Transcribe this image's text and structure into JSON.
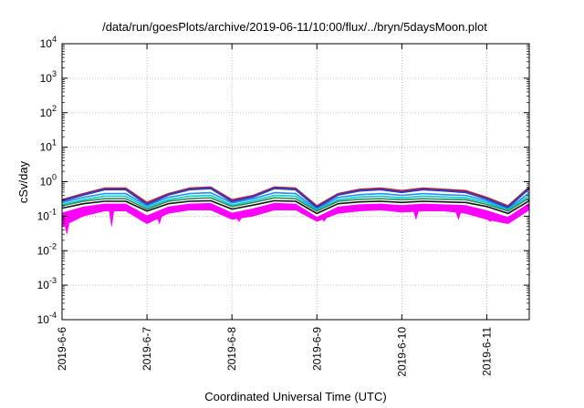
{
  "chart_data": {
    "type": "line",
    "title": "/data/run/goesPlots/archive/2019-06-11/10:00/flux/../bryn/5daysMoon.plot",
    "xlabel": "Coordinated Universal Time (UTC)",
    "ylabel": "cSv/day",
    "y_scale": "log",
    "ylim": [
      0.0001,
      10000
    ],
    "xlim": [
      "2019-6-6",
      "2019-6-11 12:00"
    ],
    "grid": true,
    "x_tick_labels": [
      "2019-6-6",
      "2019-6-7",
      "2019-6-8",
      "2019-6-9",
      "2019-6-10",
      "2019-6-11"
    ],
    "y_ticks": [
      {
        "base": "10",
        "exp": "-4"
      },
      {
        "base": "10",
        "exp": "-3"
      },
      {
        "base": "10",
        "exp": "-2"
      },
      {
        "base": "10",
        "exp": "-1"
      },
      {
        "base": "10",
        "exp": "0"
      },
      {
        "base": "10",
        "exp": "1"
      },
      {
        "base": "10",
        "exp": "2"
      },
      {
        "base": "10",
        "exp": "3"
      },
      {
        "base": "10",
        "exp": "4"
      }
    ],
    "x": [
      "2019-6-6 00:00",
      "2019-6-6 06:00",
      "2019-6-6 12:00",
      "2019-6-6 18:00",
      "2019-6-7 00:00",
      "2019-6-7 06:00",
      "2019-6-7 12:00",
      "2019-6-7 18:00",
      "2019-6-8 00:00",
      "2019-6-8 06:00",
      "2019-6-8 12:00",
      "2019-6-8 18:00",
      "2019-6-9 00:00",
      "2019-6-9 06:00",
      "2019-6-9 12:00",
      "2019-6-9 18:00",
      "2019-6-10 00:00",
      "2019-6-10 06:00",
      "2019-6-10 12:00",
      "2019-6-10 18:00",
      "2019-6-11 00:00",
      "2019-6-11 06:00",
      "2019-6-11 12:00"
    ],
    "series": [
      {
        "color": "#e41a1c",
        "values": [
          0.3,
          0.45,
          0.65,
          0.65,
          0.25,
          0.45,
          0.65,
          0.7,
          0.3,
          0.4,
          0.7,
          0.65,
          0.2,
          0.45,
          0.6,
          0.65,
          0.55,
          0.65,
          0.6,
          0.55,
          0.35,
          0.2,
          0.7
        ]
      },
      {
        "color": "#3a3ab0",
        "values": [
          0.28,
          0.42,
          0.6,
          0.6,
          0.22,
          0.42,
          0.6,
          0.65,
          0.27,
          0.37,
          0.65,
          0.6,
          0.18,
          0.42,
          0.55,
          0.6,
          0.5,
          0.6,
          0.55,
          0.5,
          0.32,
          0.18,
          0.65
        ]
      },
      {
        "color": "#1e90ff",
        "values": [
          0.25,
          0.35,
          0.45,
          0.45,
          0.2,
          0.35,
          0.45,
          0.48,
          0.24,
          0.32,
          0.48,
          0.45,
          0.16,
          0.35,
          0.42,
          0.45,
          0.4,
          0.45,
          0.42,
          0.4,
          0.28,
          0.16,
          0.48
        ]
      },
      {
        "color": "#00ced1",
        "values": [
          0.22,
          0.3,
          0.38,
          0.38,
          0.18,
          0.3,
          0.38,
          0.4,
          0.21,
          0.28,
          0.4,
          0.38,
          0.15,
          0.3,
          0.36,
          0.38,
          0.34,
          0.38,
          0.36,
          0.34,
          0.25,
          0.15,
          0.4
        ]
      },
      {
        "color": "#2e8b57",
        "values": [
          0.2,
          0.27,
          0.32,
          0.32,
          0.16,
          0.27,
          0.32,
          0.34,
          0.19,
          0.25,
          0.34,
          0.32,
          0.14,
          0.27,
          0.31,
          0.32,
          0.3,
          0.32,
          0.31,
          0.3,
          0.22,
          0.14,
          0.34
        ]
      },
      {
        "color": "#111111",
        "values": [
          0.17,
          0.23,
          0.27,
          0.27,
          0.14,
          0.23,
          0.27,
          0.28,
          0.16,
          0.21,
          0.28,
          0.27,
          0.12,
          0.23,
          0.26,
          0.27,
          0.25,
          0.27,
          0.26,
          0.25,
          0.19,
          0.12,
          0.28
        ]
      },
      {
        "color": "#ff00ff",
        "values": [
          0.12,
          0.18,
          0.22,
          0.22,
          0.1,
          0.18,
          0.22,
          0.23,
          0.12,
          0.16,
          0.23,
          0.22,
          0.09,
          0.18,
          0.21,
          0.22,
          0.2,
          0.22,
          0.21,
          0.2,
          0.14,
          0.09,
          0.23
        ]
      }
    ],
    "magenta_band_min": [
      0.05,
      0.1,
      0.14,
      0.14,
      0.06,
      0.12,
      0.15,
      0.15,
      0.08,
      0.1,
      0.15,
      0.15,
      0.07,
      0.12,
      0.14,
      0.15,
      0.13,
      0.14,
      0.14,
      0.12,
      0.08,
      0.06,
      0.15
    ],
    "magenta_dips": [
      {
        "x": "2019-6-6 01:20",
        "y": 0.03
      },
      {
        "x": "2019-6-6 14:00",
        "y": 0.05
      },
      {
        "x": "2019-6-7 03:30",
        "y": 0.06
      },
      {
        "x": "2019-6-8 02:00",
        "y": 0.07
      },
      {
        "x": "2019-6-9 02:00",
        "y": 0.07
      },
      {
        "x": "2019-6-10 04:00",
        "y": 0.08
      },
      {
        "x": "2019-6-10 16:00",
        "y": 0.08
      },
      {
        "x": "2019-6-11 01:00",
        "y": 0.07
      }
    ]
  }
}
